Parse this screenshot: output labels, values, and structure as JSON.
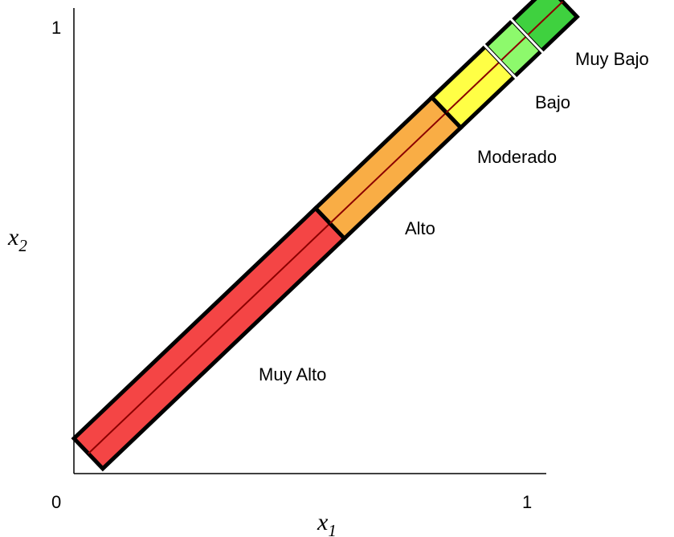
{
  "axes": {
    "x_label": "x",
    "x_subscript": "1",
    "y_label": "x",
    "y_subscript": "2",
    "origin_label": "0",
    "x_max_label": "1",
    "y_max_label": "1"
  },
  "bands": [
    {
      "id": "muy-alto",
      "label": "Muy Alto",
      "from": 0.0,
      "to": 0.54,
      "color": "#f44545"
    },
    {
      "id": "alto",
      "label": "Alto",
      "from": 0.54,
      "to": 0.8,
      "color": "#f9ad45"
    },
    {
      "id": "moderado",
      "label": "Moderado",
      "from": 0.8,
      "to": 0.92,
      "color": "#ffff45"
    },
    {
      "id": "bajo",
      "label": "Bajo",
      "from": 0.92,
      "to": 0.98,
      "color": "#8df96c"
    },
    {
      "id": "muy-bajo",
      "label": "Muy Bajo",
      "from": 0.98,
      "to": 1.06,
      "color": "#3fd13f"
    }
  ],
  "colors": {
    "axis": "#000000",
    "centerline": "#8b0000",
    "outline": "#000000"
  }
}
